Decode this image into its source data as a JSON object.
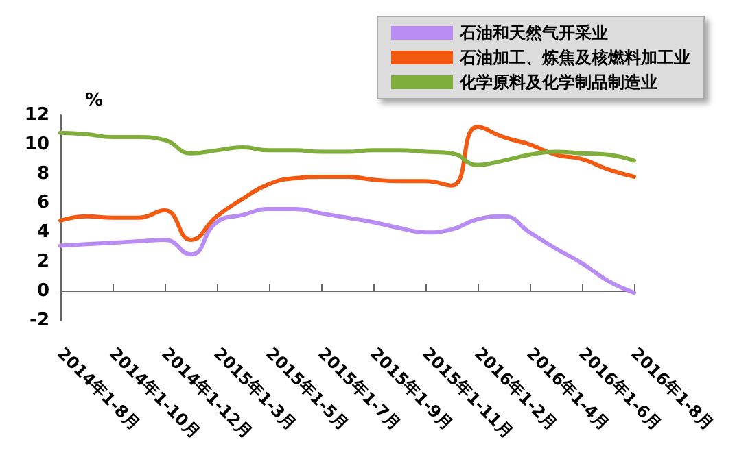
{
  "chart_data": {
    "type": "line",
    "ylabel": "%",
    "categories": [
      "2014年1-8月",
      null,
      "2014年1-10月",
      null,
      "2014年1-12月",
      null,
      "2015年1-3月",
      null,
      "2015年1-5月",
      null,
      "2015年1-7月",
      null,
      "2015年1-9月",
      null,
      "2015年1-11月",
      null,
      "2016年1-2月",
      null,
      "2016年1-4月",
      null,
      "2016年1-6月",
      null,
      "2016年1-8月"
    ],
    "series": [
      {
        "name": "石油和天然气开采业",
        "color": "#b88cf2",
        "values": [
          3.1,
          3.2,
          3.3,
          3.4,
          3.5,
          2.5,
          4.7,
          5.2,
          5.6,
          5.6,
          5.3,
          5.0,
          4.7,
          4.3,
          4.0,
          4.2,
          4.9,
          5.1,
          4.0,
          2.9,
          1.9,
          0.7,
          -0.1
        ]
      },
      {
        "name": "石油加工、炼焦及核燃料加工业",
        "color": "#f25a12",
        "values": [
          4.8,
          5.1,
          5.0,
          5.0,
          5.5,
          3.5,
          5.1,
          6.3,
          7.3,
          7.7,
          7.8,
          7.8,
          7.6,
          7.5,
          7.5,
          7.2,
          11.2,
          10.5,
          10.0,
          9.3,
          9.0,
          8.3,
          7.8
        ]
      },
      {
        "name": "化学原料及化学制品制造业",
        "color": "#7fae3a",
        "values": [
          10.8,
          10.7,
          10.5,
          10.5,
          10.3,
          9.4,
          9.6,
          9.8,
          9.6,
          9.6,
          9.5,
          9.5,
          9.6,
          9.6,
          9.5,
          9.4,
          8.6,
          8.9,
          9.3,
          9.5,
          9.4,
          9.3,
          8.9
        ]
      }
    ],
    "ylim": [
      -2,
      12
    ],
    "yticks": [
      -2,
      0,
      2,
      4,
      6,
      8,
      10,
      12
    ],
    "legend": "top right",
    "marker": "none",
    "line_style": "solid"
  }
}
